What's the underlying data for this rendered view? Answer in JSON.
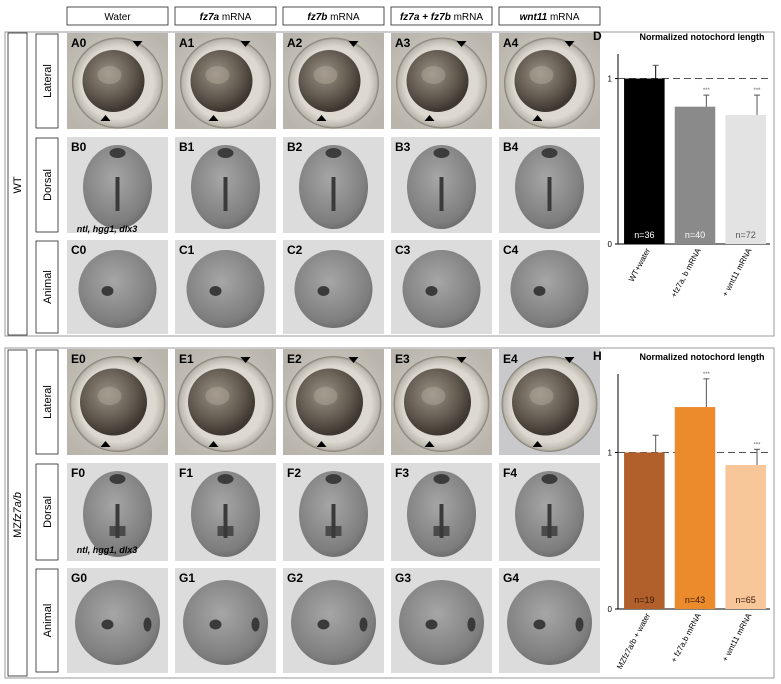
{
  "columns": [
    {
      "name": "Water",
      "gene": "",
      "suffix": ""
    },
    {
      "name": "fz7a mRNA",
      "gene": "fz7a",
      "suffix": " mRNA"
    },
    {
      "name": "fz7b mRNA",
      "gene": "fz7b",
      "suffix": " mRNA"
    },
    {
      "name": "fz7a + fz7b mRNA",
      "gene": "fz7a + fz7b",
      "suffix": " mRNA"
    },
    {
      "name": "wnt11 mRNA",
      "gene": "wnt11",
      "suffix": " mRNA"
    }
  ],
  "groups": [
    {
      "label": "WT",
      "label_italic": "",
      "rows": [
        "Lateral",
        "Dorsal",
        "Animal"
      ],
      "row_letters": [
        "A",
        "B",
        "C"
      ]
    },
    {
      "label": "MZ",
      "label_italic": "fz7a/b",
      "rows": [
        "Lateral",
        "Dorsal",
        "Animal"
      ],
      "row_letters": [
        "E",
        "F",
        "G"
      ]
    }
  ],
  "markers_text": "ntl, hgg1, dlx3",
  "chart_data": [
    {
      "panel": "D",
      "type": "bar",
      "title": "Normalized notochord length",
      "categories": [
        "WT+water",
        "+fz7a, b mRNA",
        "+ wnt11 mRNA"
      ],
      "values": [
        1.0,
        0.83,
        0.78
      ],
      "errors": [
        0.08,
        0.07,
        0.12
      ],
      "n_labels": [
        "n=36",
        "n=40",
        "n=72"
      ],
      "significance": [
        "",
        "***",
        "***"
      ],
      "colors": [
        "#000000",
        "#8a8a8a",
        "#e3e3e3"
      ],
      "n_colors": [
        "#ffffff",
        "#ffffff",
        "#555555"
      ],
      "ylim": [
        0,
        1.1
      ],
      "yticks": [
        0,
        1
      ],
      "reference_line": 1,
      "xlabel": "",
      "ylabel": ""
    },
    {
      "panel": "H",
      "type": "bar",
      "title": "Normalized notochord length",
      "categories": [
        "MZfz7a/b + water",
        "+ fz7a,b mRNA",
        "+ wnt11 mRNA"
      ],
      "values": [
        1.0,
        1.29,
        0.92
      ],
      "errors": [
        0.11,
        0.18,
        0.1
      ],
      "n_labels": [
        "n=19",
        "n=43",
        "n=65"
      ],
      "significance": [
        "",
        "***",
        "***"
      ],
      "colors": [
        "#b15f2b",
        "#ec8b2b",
        "#f7c699"
      ],
      "n_colors": [
        "#3a1a08",
        "#3a1a08",
        "#3a1a08"
      ],
      "ylim": [
        0,
        1.45
      ],
      "yticks": [
        0,
        1
      ],
      "reference_line": 1,
      "xlabel": "",
      "ylabel": ""
    }
  ]
}
